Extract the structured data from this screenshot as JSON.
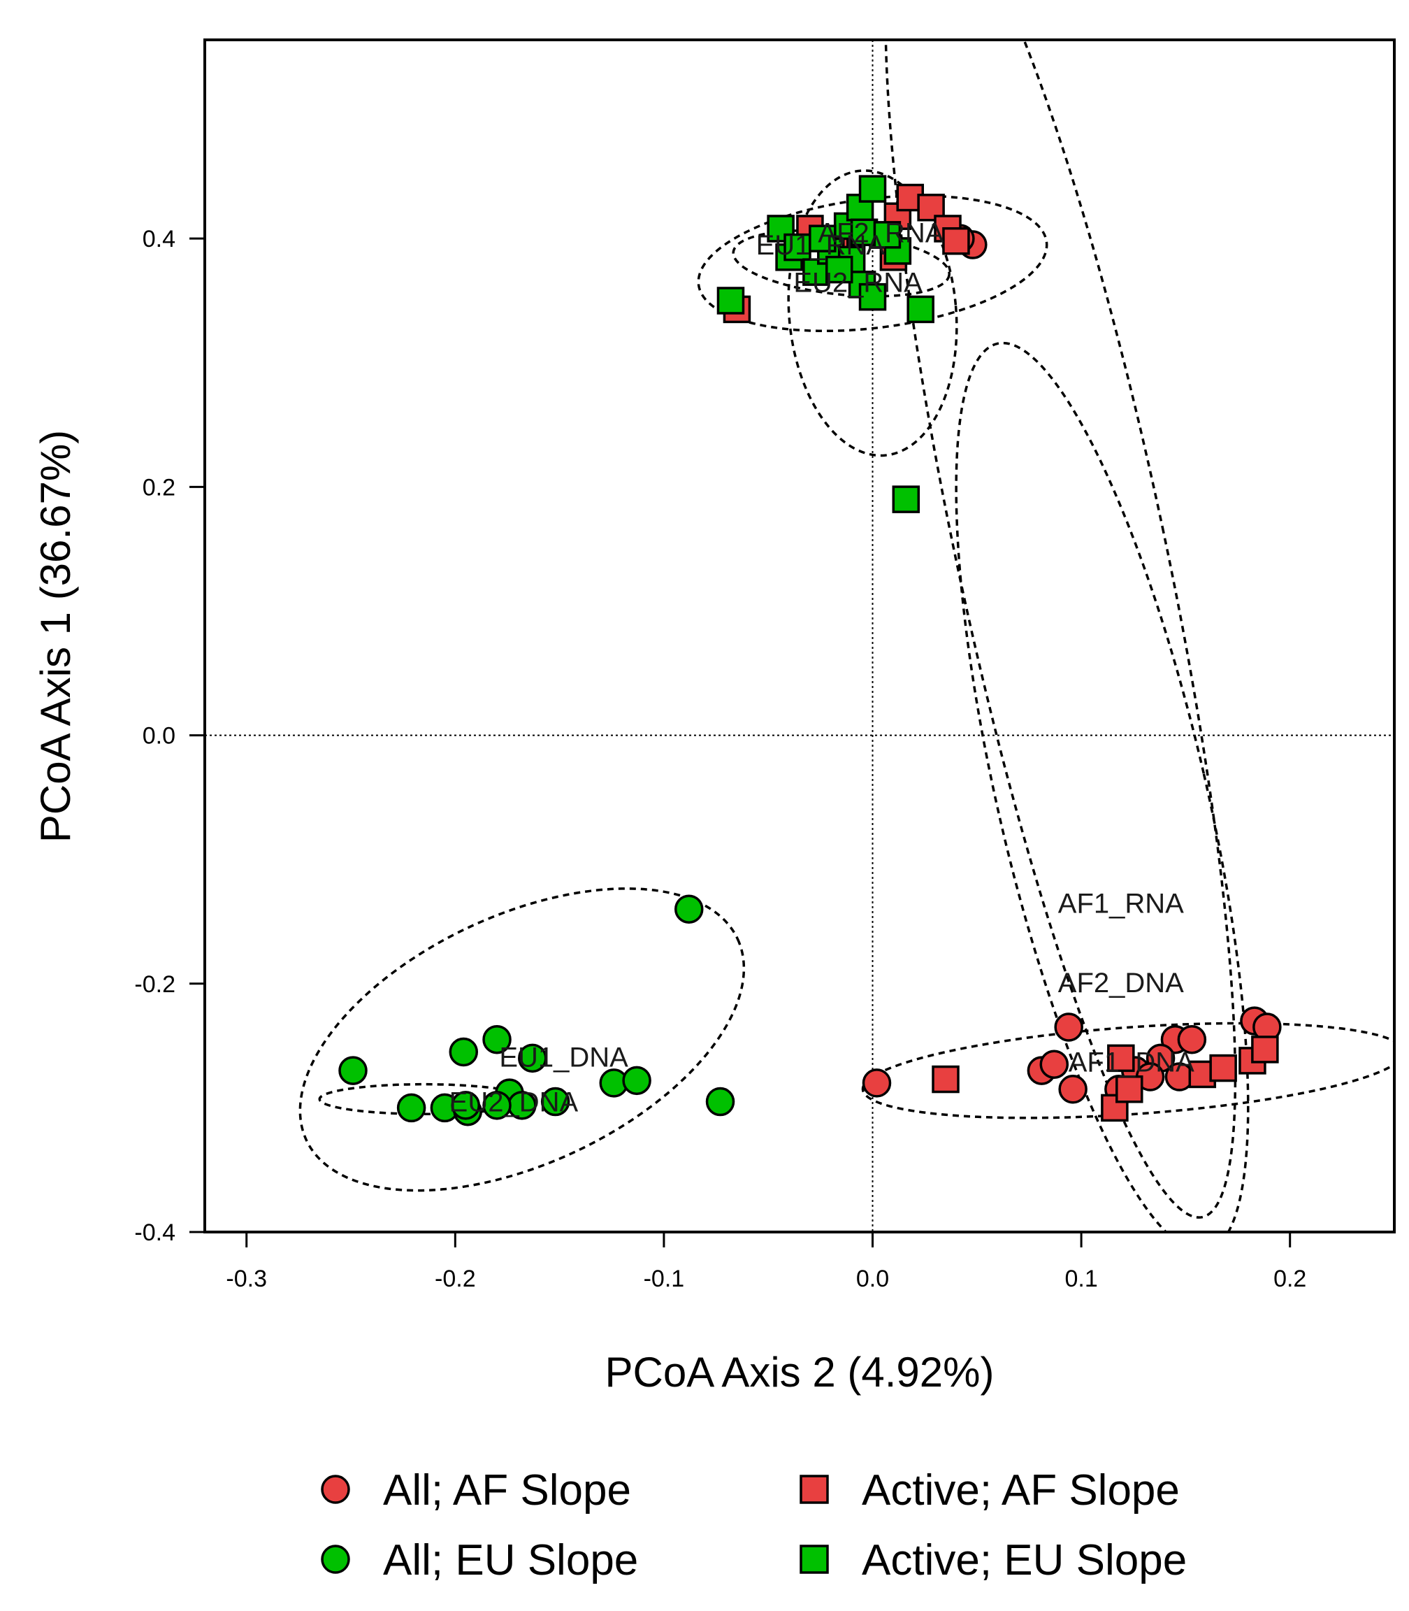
{
  "chart_data": {
    "type": "scatter",
    "title": "",
    "xlabel": "PCoA Axis 2 (4.92%)",
    "ylabel": "PCoA Axis 1 (36.67%)",
    "xlim": [
      -0.32,
      0.25
    ],
    "ylim": [
      -0.4,
      0.56
    ],
    "xticks": [
      -0.3,
      -0.2,
      -0.1,
      0.0,
      0.1,
      0.2
    ],
    "xtick_labels": [
      "-0.3",
      "-0.2",
      "-0.1",
      "0.0",
      "0.1",
      "0.2"
    ],
    "yticks": [
      -0.4,
      -0.2,
      0.0,
      0.2,
      0.4
    ],
    "ytick_labels": [
      "-0.4",
      "-0.2",
      "0.0",
      "0.2",
      "0.4"
    ],
    "grid": false,
    "reference_lines": {
      "x": 0,
      "y": 0
    },
    "legend_position": "bottom",
    "colors": {
      "AF": "#e84040",
      "EU": "#00c000",
      "outline": "#000000"
    },
    "series": [
      {
        "name": "All; AF Slope",
        "marker": "circle",
        "color": "#e84040",
        "points": [
          [
            0.002,
            -0.28
          ],
          [
            0.094,
            -0.235
          ],
          [
            0.096,
            -0.285
          ],
          [
            0.081,
            -0.27
          ],
          [
            0.087,
            -0.265
          ],
          [
            0.145,
            -0.245
          ],
          [
            0.153,
            -0.245
          ],
          [
            0.183,
            -0.23
          ],
          [
            0.189,
            -0.235
          ],
          [
            0.126,
            -0.27
          ],
          [
            0.138,
            -0.26
          ],
          [
            0.147,
            -0.275
          ],
          [
            0.133,
            -0.275
          ],
          [
            0.118,
            -0.285
          ],
          [
            0.048,
            0.395
          ],
          [
            0.042,
            0.4
          ]
        ]
      },
      {
        "name": "All; EU Slope",
        "marker": "circle",
        "color": "#00c000",
        "points": [
          [
            -0.088,
            -0.14
          ],
          [
            -0.249,
            -0.27
          ],
          [
            -0.221,
            -0.3
          ],
          [
            -0.196,
            -0.255
          ],
          [
            -0.18,
            -0.245
          ],
          [
            -0.163,
            -0.26
          ],
          [
            -0.124,
            -0.28
          ],
          [
            -0.113,
            -0.278
          ],
          [
            -0.152,
            -0.295
          ],
          [
            -0.073,
            -0.295
          ],
          [
            -0.174,
            -0.288
          ],
          [
            -0.205,
            -0.3
          ],
          [
            -0.194,
            -0.303
          ],
          [
            -0.168,
            -0.298
          ],
          [
            -0.18,
            -0.298
          ],
          [
            -0.195,
            -0.298
          ]
        ]
      },
      {
        "name": "Active; AF Slope",
        "marker": "square",
        "color": "#e84040",
        "points": [
          [
            0.035,
            -0.277
          ],
          [
            0.116,
            -0.3
          ],
          [
            0.119,
            -0.26
          ],
          [
            0.123,
            -0.285
          ],
          [
            0.158,
            -0.273
          ],
          [
            0.168,
            -0.268
          ],
          [
            0.182,
            -0.262
          ],
          [
            0.188,
            -0.253
          ],
          [
            -0.065,
            0.343
          ],
          [
            -0.03,
            0.408
          ],
          [
            0.012,
            0.418
          ],
          [
            0.018,
            0.433
          ],
          [
            0.028,
            0.425
          ],
          [
            0.036,
            0.408
          ],
          [
            0.04,
            0.398
          ],
          [
            0.01,
            0.385
          ],
          [
            -0.018,
            0.393
          ]
        ]
      },
      {
        "name": "Active; EU Slope",
        "marker": "square",
        "color": "#00c000",
        "points": [
          [
            0.016,
            0.19
          ],
          [
            -0.068,
            0.35
          ],
          [
            0.023,
            0.343
          ],
          [
            -0.044,
            0.408
          ],
          [
            -0.04,
            0.385
          ],
          [
            -0.036,
            0.393
          ],
          [
            -0.027,
            0.373
          ],
          [
            -0.02,
            0.39
          ],
          [
            -0.012,
            0.41
          ],
          [
            -0.006,
            0.425
          ],
          [
            -0.004,
            0.405
          ],
          [
            -0.01,
            0.383
          ],
          [
            0.0,
            0.44
          ],
          [
            -0.005,
            0.363
          ],
          [
            0.0,
            0.353
          ],
          [
            0.012,
            0.39
          ],
          [
            -0.016,
            0.375
          ],
          [
            -0.024,
            0.4
          ],
          [
            0.007,
            0.403
          ]
        ]
      }
    ],
    "group_labels": [
      {
        "text": "EU1_RNA",
        "x": -0.025,
        "y": 0.395
      },
      {
        "text": "AF2_RNA",
        "x": 0.004,
        "y": 0.405
      },
      {
        "text": "EU2_RNA",
        "x": -0.007,
        "y": 0.365
      },
      {
        "text": "AF1_RNA",
        "x": 0.119,
        "y": -0.135
      },
      {
        "text": "AF2_DNA",
        "x": 0.119,
        "y": -0.199
      },
      {
        "text": "EU1_DNA",
        "x": -0.148,
        "y": -0.259
      },
      {
        "text": "EU2_DNA",
        "x": -0.172,
        "y": -0.295
      },
      {
        "text": "AF1_DNA",
        "x": 0.124,
        "y": -0.263
      }
    ],
    "ellipses": [
      {
        "cx": 0.0,
        "cy": 0.38,
        "rx": 0.084,
        "ry": 0.052,
        "rot": -7
      },
      {
        "cx": -0.015,
        "cy": 0.38,
        "rx": 0.052,
        "ry": 0.025,
        "rot": 6
      },
      {
        "cx": 0.0,
        "cy": 0.34,
        "rx": 0.04,
        "ry": 0.115,
        "rot": -5
      },
      {
        "cx": 0.09,
        "cy": 0.15,
        "rx": 0.05,
        "ry": 0.55,
        "rot": -12
      },
      {
        "cx": 0.11,
        "cy": -0.05,
        "rx": 0.05,
        "ry": 0.375,
        "rot": -13
      },
      {
        "cx": 0.125,
        "cy": -0.27,
        "rx": 0.13,
        "ry": 0.035,
        "rot": -4
      },
      {
        "cx": -0.168,
        "cy": -0.245,
        "rx": 0.114,
        "ry": 0.1,
        "rot": -25
      },
      {
        "cx": -0.215,
        "cy": -0.293,
        "rx": 0.05,
        "ry": 0.012,
        "rot": 0
      }
    ]
  }
}
